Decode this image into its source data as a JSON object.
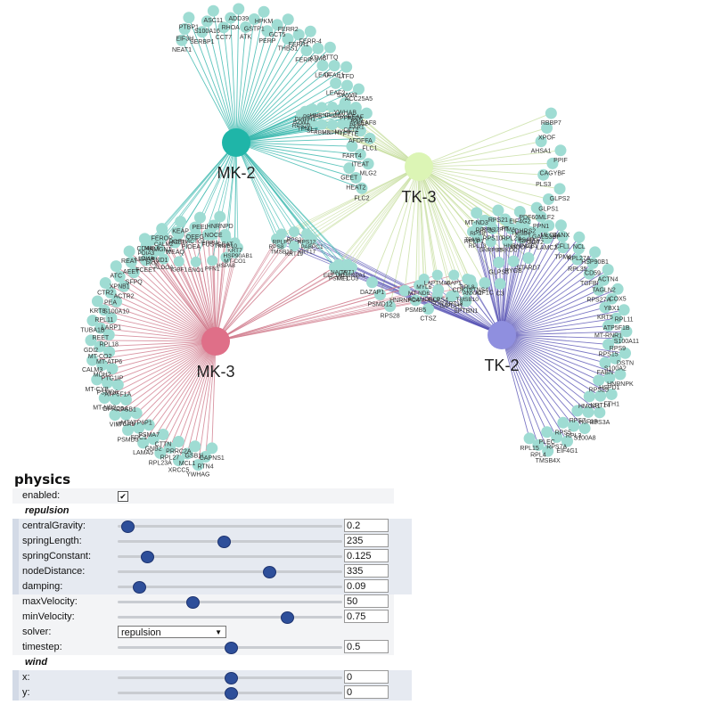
{
  "network": {
    "hubs": [
      {
        "id": "mk2",
        "label": "MK-2",
        "color": "#1fb5a8",
        "edge_color": "#36b6ad",
        "font_size": 18
      },
      {
        "id": "tk3",
        "label": "TK-3",
        "color": "#dcf5b5",
        "edge_color": "#c7dea0",
        "font_size": 18
      },
      {
        "id": "mk3",
        "label": "MK-3",
        "color": "#df6f88",
        "edge_color": "#d07a8c",
        "font_size": 18
      },
      {
        "id": "tk2",
        "label": "TK-2",
        "color": "#8f8fdf",
        "edge_color": "#5a55b5",
        "font_size": 18
      }
    ],
    "leaf_color": "#9fdcd3",
    "clusters": [
      {
        "hub": "mk2",
        "labels": [
          "NEAT1",
          "EIF3H",
          "PTBP1",
          "SERBP1",
          "S100A16",
          "ASC11",
          "CCT7",
          "RHOA",
          "ADD39",
          "ATK",
          "GSTP1",
          "HPKM",
          "PERP",
          "GCT5",
          "FERR2",
          "THBS1",
          "FERR1",
          "FERR-4",
          "FERR-3",
          "ATMC",
          "ATTQ",
          "LEAF",
          "DFAE1",
          "LTFD",
          "LEAF2",
          "SWWR",
          "ACC25A5",
          "YWHAB",
          "LEAF",
          "LEAF8",
          "FTTE",
          "AFDFFA",
          "FLC1",
          "FART4",
          "ITEAT",
          "MLG2",
          "GEET",
          "HEAT2",
          "FLC2"
        ]
      },
      {
        "hub": "tk3",
        "labels": [
          "DAZAP1",
          "PSMD12",
          "RPS28",
          "HNRNPC4",
          "PSMB5",
          "CTSZ",
          "GLPS4",
          "IMPDH1",
          "SPTBN1",
          "CDK16TNS4",
          "KIF1C",
          "C3",
          "GLPS3",
          "PYGB",
          "STARD7",
          "MOOP4",
          "GOT2",
          "MLC4",
          "PDF60MLF2",
          "GLPS1",
          "GLPS2",
          "PLS3",
          "CAGYBF",
          "PPIF",
          "AHSA1",
          "XPOF",
          "RBBP7"
        ]
      },
      {
        "hub": "mk3",
        "labels": [
          "CAPNS1",
          "RTN4",
          "YWHAG",
          "GSB1L",
          "MCL1",
          "XRCC5",
          "PRRC2A",
          "RPL27",
          "RPL23A",
          "CTTN",
          "GNB2",
          "LAMA5",
          "PSMA7",
          "SDC1",
          "PSMD3",
          "MTATP6P1",
          "ITGA6",
          "VIM",
          "RPSB1",
          "GPRC5A",
          "MT-ND2",
          "ATP5F1A",
          "PSMD6",
          "MT-CYB",
          "PTG1IP",
          "MDH2",
          "CALM3",
          "MT-ATP6",
          "MT-CO2",
          "GDI2",
          "RPL18",
          "REET",
          "TUBA1B",
          "LARP1",
          "RPL11",
          "KRT8",
          "S100A10",
          "PEA",
          "CTR2",
          "ACTR2",
          "XPNB1",
          "ATC",
          "SFPQ",
          "AEET",
          "REAT",
          "FCEET",
          "LEAAP",
          "CD44",
          "SND1",
          "HMGN1",
          "FEROP",
          "WEAQ",
          "POEL",
          "KEAP",
          "PIOEA",
          "QEEG",
          "PEEL",
          "FUS",
          "NOCE",
          "HNRNPD",
          "GEAT"
        ]
      },
      {
        "hub": "tk2",
        "labels": [
          "RPL15",
          "RPL4",
          "TMSB4X",
          "PLEC",
          "RPS7A",
          "EIF4G1",
          "RPS5",
          "RPL3",
          "S100A8",
          "RPS7",
          "H3F3B",
          "RPS3A",
          "HMGA1",
          "KRT14",
          "FTH1",
          "RPS25",
          "HSPD1",
          "HNRNPK",
          "FABN",
          "S100A2",
          "DSTN",
          "RPS15",
          "RPS9",
          "S100A11",
          "MT-RNR1",
          "ATP5F1B",
          "RPL11",
          "KRT5",
          "YBX1",
          "COX5",
          "RPS27A",
          "TAGLN2",
          "ACTN4",
          "TGFBI",
          "CD59",
          "HSP90B1",
          "RPL35",
          "RPL27A",
          "NCL",
          "TPM4",
          "CFL1",
          "CANX",
          "LAMC2",
          "LGALS3BP",
          "PPN1",
          "RPS18",
          "DHRS2",
          "EIF4G2",
          "RPL29",
          "FT",
          "RPS21",
          "RPS10",
          "RPL26",
          "MT-ND3",
          "RPLP1"
        ]
      }
    ],
    "shared_groups": [
      {
        "connects": [
          "mk2",
          "mk3"
        ],
        "labels": [
          "HSP90AB1",
          "MT-CO1",
          "HSPA8",
          "PFN1",
          "ENO1",
          "IGBF1",
          "ALDOA",
          "PKM",
          "LDHA",
          "PDIA3",
          "MYL6",
          "CALM2",
          "ACTB",
          "ACTG1",
          "PPIA",
          "TMSB10",
          "KRT7"
        ]
      },
      {
        "connects": [
          "mk2",
          "tk3",
          "mk3",
          "tk2"
        ],
        "labels": [
          "PABPC1",
          "KRT17",
          "KRT19",
          "TMSB10",
          "RPS8",
          "RPLP0",
          "RPS2",
          "RPS12"
        ]
      },
      {
        "connects": [
          "mk2",
          "tk3"
        ],
        "labels": [
          "RPS12",
          "FXR1",
          "CCT2",
          "MYH9",
          "HNPH1",
          "RBM3",
          "SET",
          "TPM1",
          "RPS20",
          "BZW1",
          "DIAPH1",
          "PRPF8",
          "HNRNPL",
          "CLUH",
          "DDX42",
          "PPP2CA",
          "RAN"
        ]
      },
      {
        "connects": [
          "tk3",
          "tk2"
        ],
        "labels": [
          "PSAP",
          "HNRNPA2B1",
          "PRKDC",
          "SNRPB2",
          "RPL13",
          "TPM3",
          "RPS8",
          "RPL12",
          "PTMA",
          "TMSB4"
        ]
      },
      {
        "connects": [
          "mk3",
          "tk2",
          "mk2",
          "tk3"
        ],
        "labels": [
          "HNRNPA1",
          "MT-CO3",
          "PSME1",
          "EEF1A1",
          "NACA",
          "TPT1"
        ]
      },
      {
        "connects": [
          "tk2",
          "tk3",
          "mk3"
        ],
        "labels": [
          "ANXA2",
          "TMSB10",
          "KRT18",
          "SON",
          "ADAMDEC1",
          "MT-ND6",
          "MYL6",
          "LAPTM4A",
          "CAP1",
          "RPL8"
        ]
      }
    ]
  },
  "physics": {
    "title": "physics",
    "enabled_label": "enabled:",
    "enabled_checked": true,
    "repulsion_section": "repulsion",
    "wind_section": "wind",
    "params": [
      {
        "key": "centralGravity",
        "label": "centralGravity:",
        "value": "0.2",
        "fraction": 0.04,
        "group": "repulsion"
      },
      {
        "key": "springLength",
        "label": "springLength:",
        "value": "235",
        "fraction": 0.47,
        "group": "repulsion"
      },
      {
        "key": "springConstant",
        "label": "springConstant:",
        "value": "0.125",
        "fraction": 0.125,
        "group": "repulsion"
      },
      {
        "key": "nodeDistance",
        "label": "nodeDistance:",
        "value": "335",
        "fraction": 0.67,
        "group": "repulsion"
      },
      {
        "key": "damping",
        "label": "damping:",
        "value": "0.09",
        "fraction": 0.09,
        "group": "repulsion"
      },
      {
        "key": "maxVelocity",
        "label": "maxVelocity:",
        "value": "50",
        "fraction": 0.33,
        "group": "root"
      },
      {
        "key": "minVelocity",
        "label": "minVelocity:",
        "value": "0.75",
        "fraction": 0.75,
        "group": "root"
      }
    ],
    "solver": {
      "label": "solver:",
      "value": "repulsion"
    },
    "timestep": {
      "label": "timestep:",
      "value": "0.5",
      "fraction": 0.5
    },
    "wind": [
      {
        "label": "x:",
        "value": "0",
        "fraction": 0.5
      },
      {
        "label": "y:",
        "value": "0",
        "fraction": 0.5
      }
    ]
  }
}
